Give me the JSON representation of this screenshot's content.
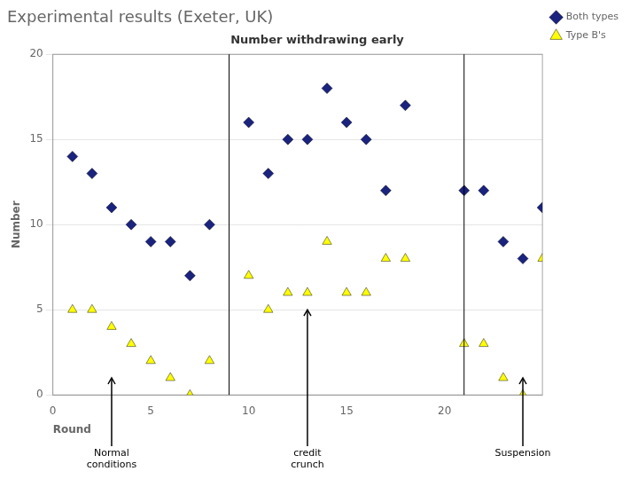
{
  "chart_data": {
    "type": "scatter",
    "title": "Experimental results (Exeter, UK)",
    "subtitle": "Number withdrawing early",
    "xlabel": "Round",
    "ylabel": "Number",
    "x": [
      1,
      2,
      3,
      4,
      5,
      6,
      7,
      8,
      10,
      11,
      12,
      13,
      14,
      15,
      16,
      17,
      18,
      21,
      22,
      23,
      24,
      25
    ],
    "series": [
      {
        "name": "Both types",
        "color": "#1a237e",
        "marker": "diamond",
        "values": [
          14,
          13,
          11,
          10,
          9,
          9,
          7,
          10,
          16,
          13,
          15,
          15,
          18,
          16,
          15,
          12,
          17,
          12,
          12,
          9,
          8,
          11
        ]
      },
      {
        "name": "Type B's",
        "color": "#ffff00",
        "marker": "triangle",
        "values": [
          5,
          5,
          4,
          3,
          2,
          1,
          0,
          2,
          7,
          5,
          6,
          6,
          9,
          6,
          6,
          8,
          8,
          3,
          3,
          1,
          0,
          8
        ]
      }
    ],
    "xlim": [
      0,
      25
    ],
    "ylim": [
      0,
      20
    ],
    "xticks": [
      0,
      5,
      10,
      15,
      20
    ],
    "yticks": [
      0,
      5,
      10,
      15,
      20
    ],
    "vlines": [
      9,
      21
    ],
    "annotations": [
      {
        "text": "Normal\nconditions",
        "x": 3,
        "y": 1
      },
      {
        "text": "credit\ncrunch",
        "x": 13,
        "y": 5
      },
      {
        "text": "Suspension",
        "x": 24,
        "y": 1
      }
    ],
    "grid": "y",
    "legend": "right"
  }
}
